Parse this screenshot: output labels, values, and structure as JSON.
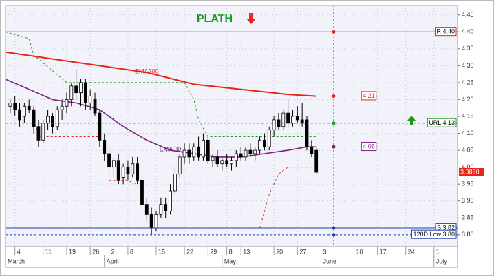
{
  "chart_data": {
    "type": "candlestick",
    "title": "PLATH",
    "title_color": "#1a9a1a",
    "grid": true,
    "ylim": [
      3.765,
      4.478
    ],
    "yticks": [
      {
        "value": 3.8,
        "label": "3.80"
      },
      3.85,
      {
        "value": 3.9,
        "label": "3.90"
      },
      3.95,
      {
        "value": 4.0,
        "label": "4.00"
      },
      4.05,
      {
        "value": 4.1,
        "label": "4.10"
      },
      4.15,
      {
        "value": 4.2,
        "label": "4.20"
      },
      4.25,
      {
        "value": 4.3,
        "label": "4.30"
      },
      4.35,
      {
        "value": 4.4,
        "label": "4.40"
      },
      4.45
    ],
    "xlim": [
      0,
      96
    ],
    "xticks": [
      {
        "value": 2,
        "label": "4"
      },
      {
        "value": 8,
        "label": "11"
      },
      {
        "value": 13,
        "label": "19"
      },
      {
        "value": 18,
        "label": "26"
      },
      {
        "value": 22,
        "label": "2"
      },
      {
        "value": 26,
        "label": "8"
      },
      {
        "value": 32,
        "label": "15"
      },
      {
        "value": 38,
        "label": "22"
      },
      {
        "value": 43,
        "label": "29"
      },
      {
        "value": 47,
        "label": "8"
      },
      {
        "value": 50,
        "label": "13"
      },
      {
        "value": 57,
        "label": "20"
      },
      {
        "value": 62,
        "label": "27"
      },
      {
        "value": 67,
        "label": "3"
      },
      {
        "value": 74,
        "label": "10"
      },
      {
        "value": 79,
        "label": "17"
      },
      {
        "value": 85,
        "label": "24"
      },
      {
        "value": 91,
        "label": "1"
      }
    ],
    "months": [
      {
        "value": 0,
        "label": "March"
      },
      {
        "value": 21,
        "label": "April"
      },
      {
        "value": 46,
        "label": "May"
      },
      {
        "value": 67,
        "label": "June"
      },
      {
        "value": 91,
        "label": "July"
      }
    ],
    "x": [
      1,
      2,
      3,
      4,
      5,
      6,
      7,
      8,
      9,
      10,
      11,
      12,
      13,
      14,
      15,
      16,
      17,
      18,
      19,
      20,
      21,
      22,
      23,
      24,
      25,
      26,
      27,
      28,
      29,
      30,
      31,
      32,
      33,
      34,
      35,
      36,
      37,
      38,
      39,
      40,
      41,
      42,
      43,
      44,
      45,
      46,
      47,
      48,
      49,
      50,
      51,
      52,
      53,
      54,
      55,
      56,
      57,
      58,
      59,
      60,
      61,
      62,
      63,
      64,
      65,
      66
    ],
    "open": [
      4.18,
      4.19,
      4.17,
      4.15,
      4.18,
      4.17,
      4.12,
      4.08,
      4.13,
      4.15,
      4.12,
      4.17,
      4.18,
      4.2,
      4.24,
      4.22,
      4.25,
      4.19,
      4.2,
      4.16,
      4.08,
      4.04,
      4.0,
      4.02,
      3.97,
      4.0,
      3.98,
      4.01,
      3.96,
      3.89,
      3.86,
      3.82,
      3.86,
      3.89,
      3.87,
      3.93,
      3.98,
      4.03,
      4.05,
      4.03,
      4.06,
      4.03,
      4.08,
      4.02,
      4.03,
      4.01,
      4.02,
      4.01,
      4.02,
      4.04,
      4.03,
      4.05,
      4.04,
      4.05,
      4.08,
      4.06,
      4.11,
      4.14,
      4.12,
      4.16,
      4.13,
      4.15,
      4.14,
      4.14,
      4.06,
      4.05
    ],
    "high": [
      4.2,
      4.21,
      4.19,
      4.19,
      4.2,
      4.18,
      4.14,
      4.14,
      4.17,
      4.16,
      4.18,
      4.2,
      4.22,
      4.25,
      4.29,
      4.26,
      4.26,
      4.23,
      4.22,
      4.17,
      4.1,
      4.06,
      4.03,
      4.04,
      4.01,
      4.02,
      4.03,
      4.03,
      3.98,
      3.91,
      3.88,
      3.87,
      3.91,
      3.91,
      3.95,
      4.0,
      4.04,
      4.07,
      4.07,
      4.07,
      4.09,
      4.1,
      4.09,
      4.04,
      4.05,
      4.03,
      4.04,
      4.03,
      4.05,
      4.06,
      4.06,
      4.07,
      4.06,
      4.09,
      4.1,
      4.12,
      4.15,
      4.16,
      4.17,
      4.2,
      4.17,
      4.18,
      4.19,
      4.15,
      4.08,
      4.06
    ],
    "low": [
      4.16,
      4.15,
      4.12,
      4.13,
      4.16,
      4.1,
      4.06,
      4.07,
      4.11,
      4.1,
      4.11,
      4.14,
      4.16,
      4.18,
      4.2,
      4.18,
      4.17,
      4.17,
      4.15,
      4.06,
      4.02,
      3.98,
      3.97,
      3.95,
      3.95,
      3.96,
      3.97,
      3.95,
      3.88,
      3.84,
      3.8,
      3.81,
      3.85,
      3.85,
      3.86,
      3.92,
      3.97,
      4.01,
      4.01,
      4.02,
      4.02,
      4.02,
      4.01,
      4.0,
      4.0,
      3.99,
      4.0,
      3.99,
      4.0,
      4.02,
      4.02,
      4.03,
      4.02,
      4.04,
      4.05,
      4.05,
      4.09,
      4.11,
      4.11,
      4.12,
      4.12,
      4.13,
      4.12,
      4.05,
      4.03,
      3.98
    ],
    "close": [
      4.19,
      4.17,
      4.14,
      4.18,
      4.17,
      4.12,
      4.08,
      4.13,
      4.15,
      4.12,
      4.17,
      4.18,
      4.2,
      4.24,
      4.22,
      4.25,
      4.19,
      4.21,
      4.16,
      4.08,
      4.04,
      4.0,
      4.02,
      3.96,
      4.0,
      3.98,
      4.01,
      3.96,
      3.89,
      3.86,
      3.82,
      3.86,
      3.89,
      3.87,
      3.93,
      3.98,
      4.03,
      4.05,
      4.03,
      4.06,
      4.03,
      4.08,
      4.02,
      4.03,
      4.01,
      4.02,
      4.01,
      4.02,
      4.04,
      4.03,
      4.05,
      4.04,
      4.05,
      4.08,
      4.06,
      4.11,
      4.14,
      4.12,
      4.16,
      4.13,
      4.15,
      4.14,
      4.13,
      4.06,
      4.04,
      3.985
    ],
    "overlays": [
      {
        "name": "EMA200",
        "color": "#e8231c",
        "width": 2,
        "style": "solid",
        "x": [
          0,
          10,
          20,
          30,
          40,
          50,
          60,
          66
        ],
        "values": [
          4.34,
          4.32,
          4.3,
          4.28,
          4.245,
          4.23,
          4.215,
          4.21
        ]
      },
      {
        "name": "EMA 30",
        "color": "#7b1f7b",
        "width": 1.6,
        "style": "solid",
        "x": [
          0,
          5,
          10,
          15,
          20,
          25,
          30,
          35,
          40,
          45,
          50,
          55,
          60,
          64,
          66
        ],
        "values": [
          4.26,
          4.23,
          4.2,
          4.19,
          4.17,
          4.12,
          4.08,
          4.05,
          4.04,
          4.03,
          4.03,
          4.04,
          4.05,
          4.06,
          4.06
        ]
      },
      {
        "color": "#1a9a1a",
        "width": 1,
        "style": "dashed",
        "x": [
          0,
          5,
          6,
          7,
          13,
          38,
          40,
          41,
          43,
          66
        ],
        "values": [
          4.4,
          4.38,
          4.33,
          4.32,
          4.25,
          4.25,
          4.2,
          4.14,
          4.09,
          4.09
        ]
      },
      {
        "color": "#e8231c",
        "width": 1,
        "style": "dashed",
        "x": [
          6,
          7,
          20,
          21,
          22,
          26,
          28,
          29,
          54,
          56,
          58,
          60,
          66
        ],
        "values": [
          4.15,
          4.09,
          4.09,
          null,
          3.96,
          3.96,
          3.95,
          null,
          3.82,
          3.92,
          3.98,
          4.0,
          4.0
        ]
      }
    ],
    "levels": [
      {
        "label": "R 4,40",
        "value": 4.4,
        "color": "#e8231c",
        "style": "solid"
      },
      {
        "label": "URL 4.13",
        "value": 4.13,
        "color": "#1a9a1a",
        "style": "dashed"
      },
      {
        "label": "S 3,82",
        "value": 3.82,
        "color": "#1f3fb0",
        "style": "solid"
      },
      {
        "label": "120D Low 3,80",
        "value": 3.8,
        "color": "#1f3fb0",
        "style": "dashed"
      }
    ],
    "markers": [
      {
        "label": "4.21",
        "value": 4.21,
        "color": "#e8231c"
      },
      {
        "label": "4.06",
        "value": 4.06,
        "color": "#7b1f7b"
      }
    ],
    "last": {
      "label": "3.9850",
      "value": 3.985,
      "color": "#e8231c"
    }
  }
}
